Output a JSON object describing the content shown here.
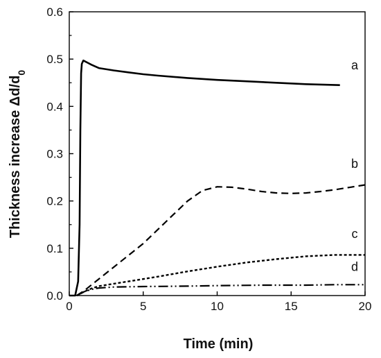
{
  "chart_data": {
    "type": "line",
    "title": "",
    "xlabel": "Time (min)",
    "ylabel_main": "Thickness increase Δd/d",
    "ylabel_subscript": "0",
    "xlim": [
      0,
      20
    ],
    "ylim": [
      0,
      0.6
    ],
    "xticks": [
      0,
      5,
      10,
      15,
      20
    ],
    "yticks": [
      0.0,
      0.1,
      0.2,
      0.3,
      0.4,
      0.5,
      0.6
    ],
    "ytick_labels": [
      "0.0",
      "0.1",
      "0.2",
      "0.3",
      "0.4",
      "0.5",
      "0.6"
    ],
    "xtick_labels": [
      "0",
      "5",
      "10",
      "15",
      "20"
    ],
    "grid": false,
    "legend": "none",
    "series": [
      {
        "name": "a",
        "style": "solid",
        "x": [
          0.0,
          0.4,
          0.6,
          0.7,
          0.75,
          0.8,
          0.85,
          0.95,
          1.5,
          2,
          3,
          4,
          5,
          6,
          8,
          10,
          12,
          14,
          16,
          18.3
        ],
        "y": [
          0.0,
          0.0,
          0.03,
          0.15,
          0.35,
          0.47,
          0.49,
          0.497,
          0.488,
          0.481,
          0.476,
          0.472,
          0.468,
          0.465,
          0.46,
          0.456,
          0.453,
          0.45,
          0.447,
          0.445
        ]
      },
      {
        "name": "b",
        "style": "dashed",
        "x": [
          0.5,
          1,
          2,
          3,
          4,
          5,
          6,
          7,
          8,
          9,
          10,
          11,
          12,
          13,
          14,
          15,
          16,
          17,
          18,
          19,
          20
        ],
        "y": [
          0.0,
          0.01,
          0.035,
          0.06,
          0.085,
          0.11,
          0.14,
          0.17,
          0.2,
          0.222,
          0.23,
          0.229,
          0.225,
          0.22,
          0.217,
          0.216,
          0.217,
          0.22,
          0.224,
          0.229,
          0.234
        ]
      },
      {
        "name": "c",
        "style": "dotted",
        "x": [
          0.5,
          1,
          1.5,
          2,
          4,
          6,
          8,
          10,
          12,
          14,
          16,
          18,
          20
        ],
        "y": [
          0.0,
          0.008,
          0.015,
          0.02,
          0.03,
          0.04,
          0.051,
          0.061,
          0.07,
          0.077,
          0.083,
          0.086,
          0.086
        ]
      },
      {
        "name": "d",
        "style": "dash-dot-dot",
        "x": [
          0.5,
          1,
          1.5,
          2,
          3,
          5,
          8,
          10,
          13,
          16,
          18,
          20
        ],
        "y": [
          0.0,
          0.008,
          0.013,
          0.016,
          0.018,
          0.019,
          0.02,
          0.021,
          0.022,
          0.022,
          0.023,
          0.023
        ]
      }
    ],
    "series_label_positions": [
      {
        "name": "a",
        "at_x": 19.3,
        "at_y": 0.478
      },
      {
        "name": "b",
        "at_x": 19.3,
        "at_y": 0.27
      },
      {
        "name": "c",
        "at_x": 19.3,
        "at_y": 0.122
      },
      {
        "name": "d",
        "at_x": 19.3,
        "at_y": 0.052
      }
    ]
  }
}
